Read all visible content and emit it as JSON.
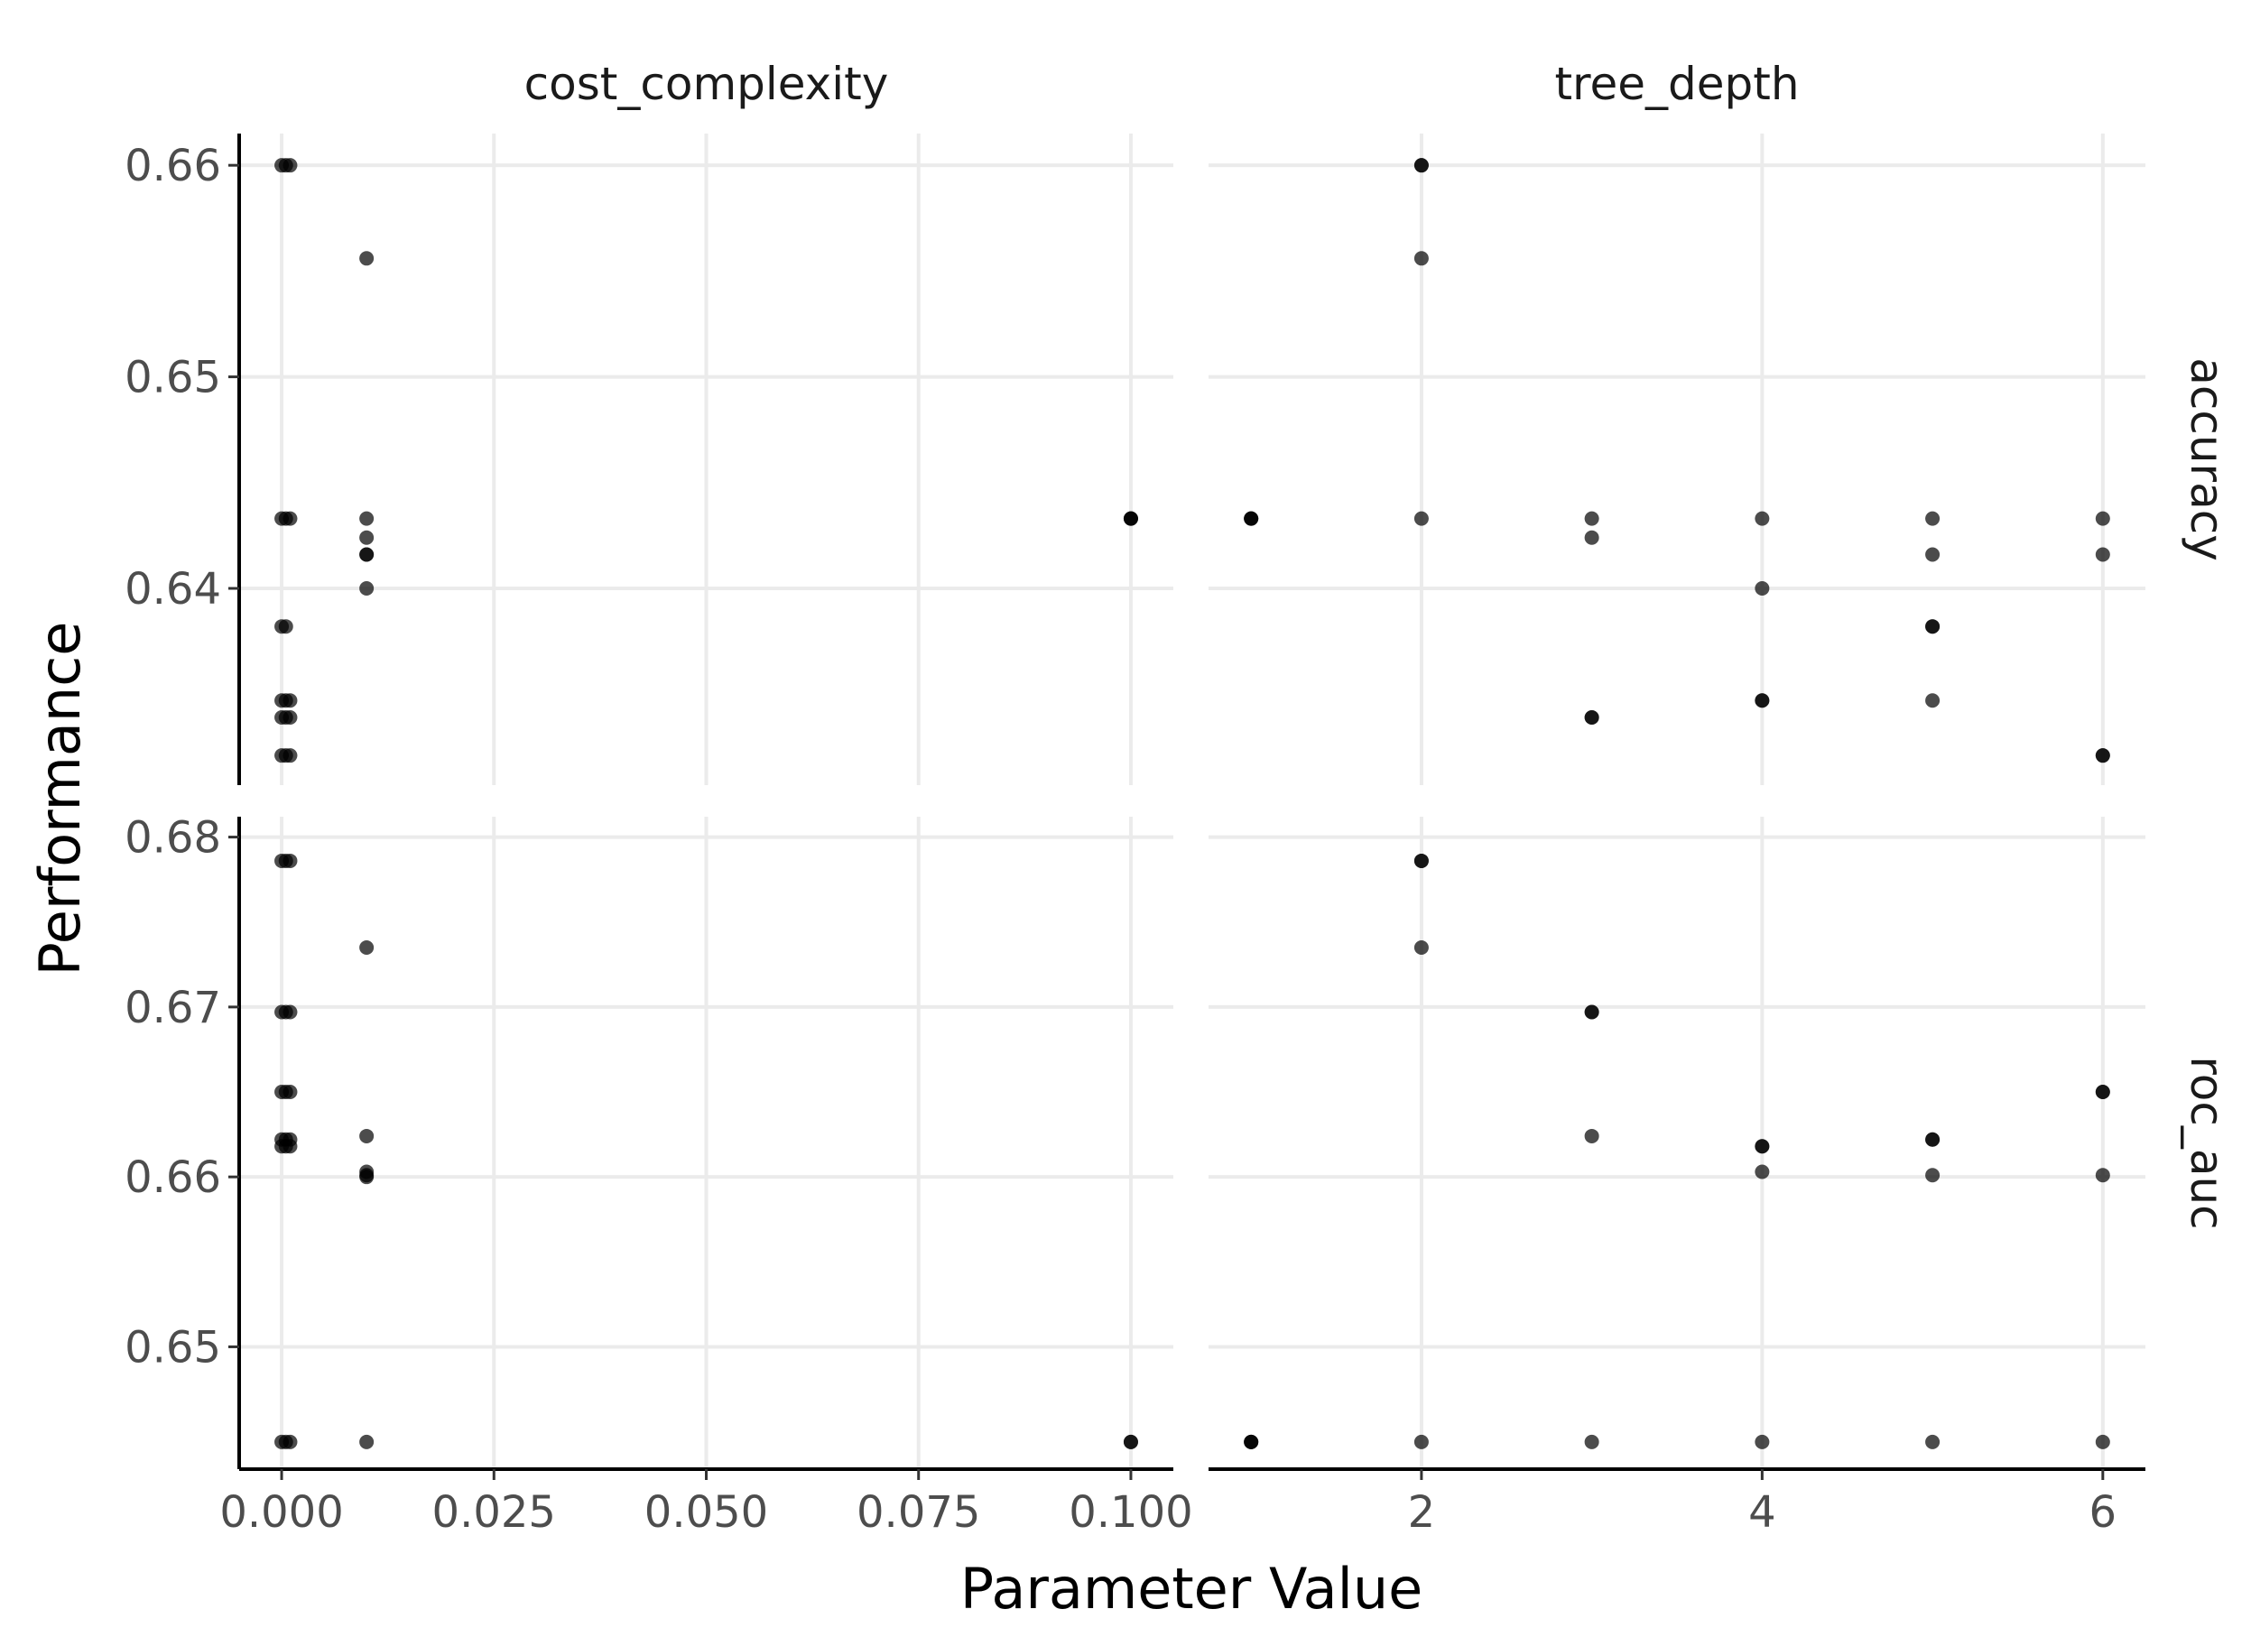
{
  "chart_data": {
    "type": "scatter",
    "xlabel": "Parameter Value",
    "ylabel": "Performance",
    "columns": [
      {
        "name": "cost_complexity",
        "xlim": [
          -0.005,
          0.105
        ],
        "xticks": [
          0,
          0.025,
          0.05,
          0.075,
          0.1
        ],
        "xtick_labels": [
          "0.000",
          "0.025",
          "0.050",
          "0.075",
          "0.100"
        ]
      },
      {
        "name": "tree_depth",
        "xlim": [
          0.75,
          6.25
        ],
        "xticks": [
          2,
          4,
          6
        ],
        "xtick_labels": [
          "2",
          "4",
          "6"
        ]
      }
    ],
    "rows": [
      {
        "name": "accuracy",
        "ylim": [
          0.6307,
          0.6615
        ],
        "yticks": [
          0.64,
          0.65,
          0.66
        ],
        "ytick_labels": [
          "0.64",
          "0.65",
          "0.66"
        ]
      },
      {
        "name": "roc_auc",
        "ylim": [
          0.6428,
          0.6812
        ],
        "yticks": [
          0.65,
          0.66,
          0.67,
          0.68
        ],
        "ytick_labels": [
          "0.65",
          "0.66",
          "0.67",
          "0.68"
        ]
      }
    ],
    "panels": [
      {
        "column": "cost_complexity",
        "row": "accuracy",
        "points": [
          [
            0.0,
            0.66
          ],
          [
            0.0005,
            0.66
          ],
          [
            0.001,
            0.66
          ],
          [
            0.01,
            0.6556
          ],
          [
            0.0,
            0.6433
          ],
          [
            0.0005,
            0.6433
          ],
          [
            0.001,
            0.6433
          ],
          [
            0.01,
            0.6433
          ],
          [
            0.01,
            0.6424
          ],
          [
            0.01,
            0.6416
          ],
          [
            0.01,
            0.6416
          ],
          [
            0.1,
            0.6433
          ],
          [
            0.1,
            0.6433
          ],
          [
            0.1,
            0.6433
          ],
          [
            0.01,
            0.64
          ],
          [
            0.0,
            0.6382
          ],
          [
            0.0005,
            0.6382
          ],
          [
            0.0,
            0.6347
          ],
          [
            0.0005,
            0.6347
          ],
          [
            0.001,
            0.6347
          ],
          [
            0.0,
            0.6339
          ],
          [
            0.0005,
            0.6339
          ],
          [
            0.001,
            0.6339
          ],
          [
            0.0,
            0.6321
          ],
          [
            0.0005,
            0.6321
          ],
          [
            0.001,
            0.6321
          ]
        ]
      },
      {
        "column": "tree_depth",
        "row": "accuracy",
        "points": [
          [
            1,
            0.6433
          ],
          [
            1,
            0.6433
          ],
          [
            1,
            0.6433
          ],
          [
            2,
            0.66
          ],
          [
            2,
            0.66
          ],
          [
            2,
            0.6556
          ],
          [
            2,
            0.6433
          ],
          [
            3,
            0.6433
          ],
          [
            3,
            0.6424
          ],
          [
            3,
            0.6339
          ],
          [
            3,
            0.6339
          ],
          [
            4,
            0.6433
          ],
          [
            4,
            0.64
          ],
          [
            4,
            0.6347
          ],
          [
            4,
            0.6347
          ],
          [
            5,
            0.6433
          ],
          [
            5,
            0.6416
          ],
          [
            5,
            0.6382
          ],
          [
            5,
            0.6382
          ],
          [
            5,
            0.6347
          ],
          [
            6,
            0.6433
          ],
          [
            6,
            0.6416
          ],
          [
            6,
            0.6321
          ],
          [
            6,
            0.6321
          ]
        ]
      },
      {
        "column": "cost_complexity",
        "row": "roc_auc",
        "points": [
          [
            0.0,
            0.6786
          ],
          [
            0.0005,
            0.6786
          ],
          [
            0.001,
            0.6786
          ],
          [
            0.01,
            0.6735
          ],
          [
            0.0,
            0.6697
          ],
          [
            0.0005,
            0.6697
          ],
          [
            0.001,
            0.6697
          ],
          [
            0.0,
            0.665
          ],
          [
            0.0005,
            0.665
          ],
          [
            0.001,
            0.665
          ],
          [
            0.0,
            0.6622
          ],
          [
            0.0005,
            0.6622
          ],
          [
            0.001,
            0.6622
          ],
          [
            0.0,
            0.6618
          ],
          [
            0.0005,
            0.6618
          ],
          [
            0.001,
            0.6618
          ],
          [
            0.01,
            0.6624
          ],
          [
            0.01,
            0.6603
          ],
          [
            0.01,
            0.6601
          ],
          [
            0.01,
            0.66
          ],
          [
            0.0,
            0.6444
          ],
          [
            0.0005,
            0.6444
          ],
          [
            0.001,
            0.6444
          ],
          [
            0.01,
            0.6444
          ],
          [
            0.1,
            0.6444
          ],
          [
            0.1,
            0.6444
          ]
        ]
      },
      {
        "column": "tree_depth",
        "row": "roc_auc",
        "points": [
          [
            1,
            0.6444
          ],
          [
            1,
            0.6444
          ],
          [
            1,
            0.6444
          ],
          [
            2,
            0.6786
          ],
          [
            2,
            0.6786
          ],
          [
            2,
            0.6735
          ],
          [
            2,
            0.6444
          ],
          [
            3,
            0.6697
          ],
          [
            3,
            0.6697
          ],
          [
            3,
            0.6624
          ],
          [
            3,
            0.6444
          ],
          [
            4,
            0.6618
          ],
          [
            4,
            0.6618
          ],
          [
            4,
            0.6603
          ],
          [
            4,
            0.6444
          ],
          [
            5,
            0.6622
          ],
          [
            5,
            0.6622
          ],
          [
            5,
            0.6601
          ],
          [
            5,
            0.6444
          ],
          [
            6,
            0.665
          ],
          [
            6,
            0.665
          ],
          [
            6,
            0.6601
          ],
          [
            6,
            0.6444
          ]
        ]
      }
    ]
  }
}
